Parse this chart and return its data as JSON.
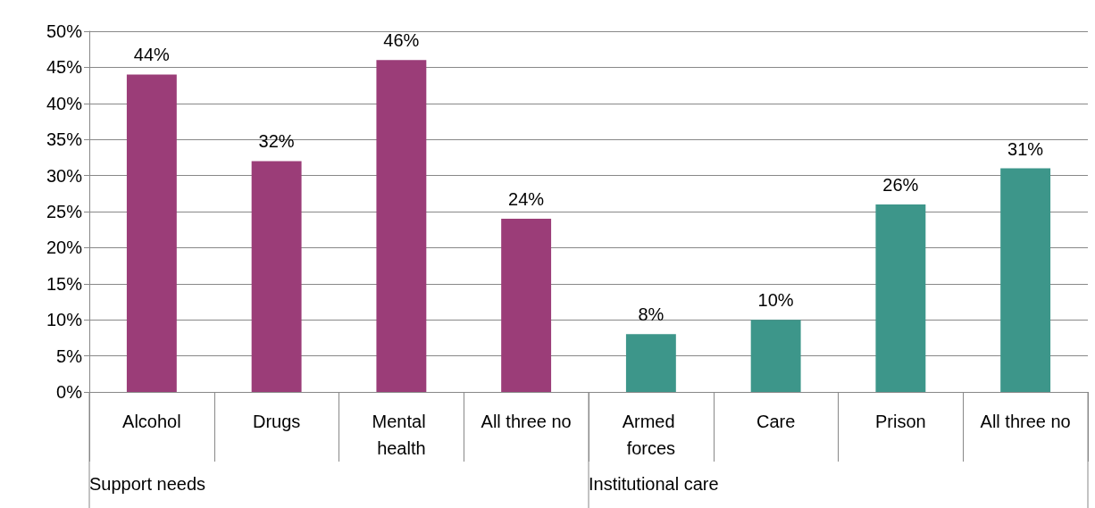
{
  "chart_data": {
    "type": "bar",
    "categories": [
      "Alcohol",
      "Drugs",
      "Mental health",
      "All three no",
      "Armed forces",
      "Care",
      "Prison",
      "All three no"
    ],
    "values": [
      44,
      32,
      46,
      24,
      8,
      10,
      26,
      31
    ],
    "colors": [
      "#9b3d78",
      "#9b3d78",
      "#9b3d78",
      "#9b3d78",
      "#3d968a",
      "#3d968a",
      "#3d968a",
      "#3d968a"
    ],
    "value_labels": [
      "44%",
      "32%",
      "46%",
      "24%",
      "8%",
      "10%",
      "26%",
      "31%"
    ],
    "ylim": [
      0,
      50
    ],
    "yticks": [
      {
        "value": 0,
        "label": "0%"
      },
      {
        "value": 5,
        "label": "5%"
      },
      {
        "value": 10,
        "label": "10%"
      },
      {
        "value": 15,
        "label": "15%"
      },
      {
        "value": 20,
        "label": "20%"
      },
      {
        "value": 25,
        "label": "25%"
      },
      {
        "value": 30,
        "label": "30%"
      },
      {
        "value": 35,
        "label": "35%"
      },
      {
        "value": 40,
        "label": "40%"
      },
      {
        "value": 45,
        "label": "45%"
      },
      {
        "value": 50,
        "label": "50%"
      }
    ],
    "grid": "y",
    "annotations": [
      "Support needs",
      "Institutional care"
    ]
  }
}
